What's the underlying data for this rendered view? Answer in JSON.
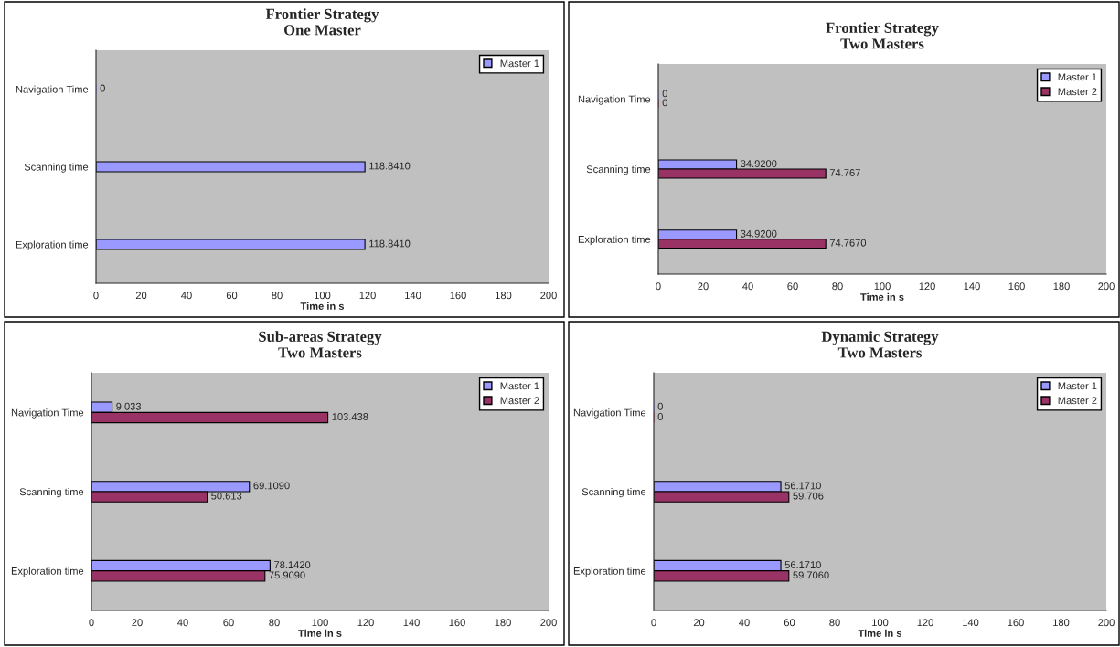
{
  "chart_data": [
    {
      "type": "bar",
      "orientation": "horizontal",
      "title": "Frontier Strategy\nOne Master",
      "xlabel": "Time in s",
      "categories": [
        "Navigation Time",
        "Scanning time",
        "Exploration time"
      ],
      "series": [
        {
          "name": "Master 1",
          "color": "#9999ff",
          "values": [
            0,
            118.841,
            118.841
          ],
          "value_labels": [
            "0",
            "118.8410",
            "118.8410"
          ]
        }
      ],
      "xlim": [
        0,
        200
      ],
      "xticks": [
        0,
        20,
        40,
        60,
        80,
        100,
        120,
        140,
        160,
        180,
        200
      ],
      "legend": "top right",
      "grid": false
    },
    {
      "type": "bar",
      "orientation": "horizontal",
      "title": "Frontier Strategy\nTwo Masters",
      "xlabel": "Time in s",
      "categories": [
        "Navigation Time",
        "Scanning time",
        "Exploration time"
      ],
      "series": [
        {
          "name": "Master 1",
          "color": "#9999ff",
          "values": [
            0,
            34.92,
            34.92
          ],
          "value_labels": [
            "0",
            "34.9200",
            "34.9200"
          ]
        },
        {
          "name": "Master 2",
          "color": "#993366",
          "values": [
            0,
            74.767,
            74.767
          ],
          "value_labels": [
            "0",
            "74.767",
            "74.7670"
          ]
        }
      ],
      "xlim": [
        0,
        200
      ],
      "xticks": [
        0,
        20,
        40,
        60,
        80,
        100,
        120,
        140,
        160,
        180,
        200
      ],
      "legend": "top right",
      "grid": false
    },
    {
      "type": "bar",
      "orientation": "horizontal",
      "title": "Sub-areas Strategy\nTwo Masters",
      "xlabel": "Time in s",
      "categories": [
        "Navigation Time",
        "Scanning time",
        "Exploration time"
      ],
      "series": [
        {
          "name": "Master 1",
          "color": "#9999ff",
          "values": [
            9.033,
            69.109,
            78.142
          ],
          "value_labels": [
            "9.033",
            "69.1090",
            "78.1420"
          ]
        },
        {
          "name": "Master 2",
          "color": "#993366",
          "values": [
            103.438,
            50.613,
            75.909
          ],
          "value_labels": [
            "103.438",
            "50.613",
            "75.9090"
          ]
        }
      ],
      "xlim": [
        0,
        200
      ],
      "xticks": [
        0,
        20,
        40,
        60,
        80,
        100,
        120,
        140,
        160,
        180,
        200
      ],
      "legend": "top right",
      "grid": false
    },
    {
      "type": "bar",
      "orientation": "horizontal",
      "title": "Dynamic Strategy\nTwo Masters",
      "xlabel": "Time in s",
      "categories": [
        "Navigation Time",
        "Scanning time",
        "Exploration time"
      ],
      "series": [
        {
          "name": "Master 1",
          "color": "#9999ff",
          "values": [
            0,
            56.171,
            56.171
          ],
          "value_labels": [
            "0",
            "56.1710",
            "56.1710"
          ]
        },
        {
          "name": "Master 2",
          "color": "#993366",
          "values": [
            0,
            59.706,
            59.706
          ],
          "value_labels": [
            "0",
            "59.706",
            "59.7060"
          ]
        }
      ],
      "xlim": [
        0,
        200
      ],
      "xticks": [
        0,
        20,
        40,
        60,
        80,
        100,
        120,
        140,
        160,
        180,
        200
      ],
      "legend": "top right",
      "grid": false
    }
  ]
}
